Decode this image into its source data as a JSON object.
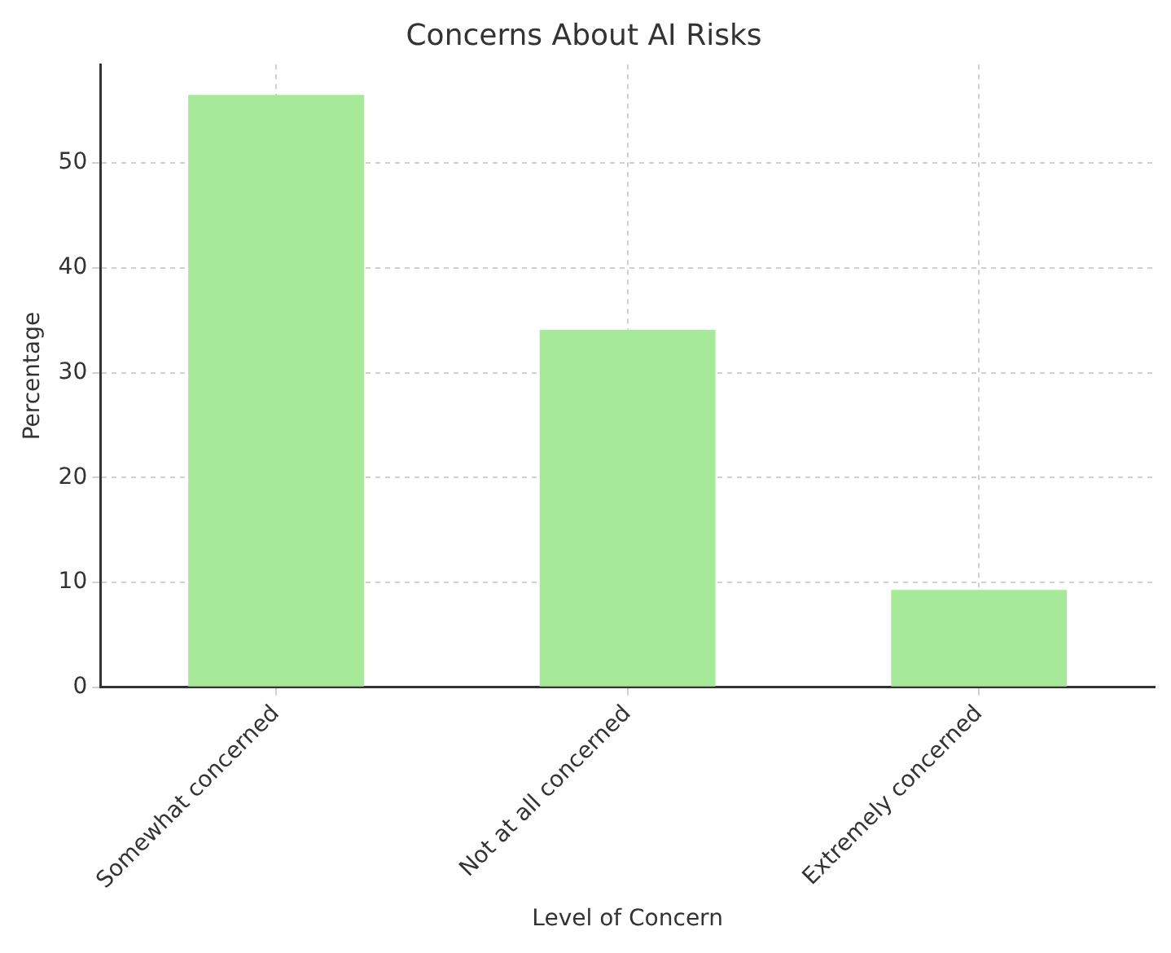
{
  "chart_data": {
    "type": "bar",
    "title": "Concerns About AI Risks",
    "xlabel": "Level of Concern",
    "ylabel": "Percentage",
    "categories": [
      "Somewhat concerned",
      "Not at all concerned",
      "Extremely concerned"
    ],
    "values": [
      56.5,
      34.1,
      9.3
    ],
    "color": "#a6e998",
    "ylim": [
      0,
      59.4
    ],
    "yticks": [
      0,
      10,
      20,
      30,
      40,
      50
    ],
    "grid": true,
    "legend": false
  }
}
